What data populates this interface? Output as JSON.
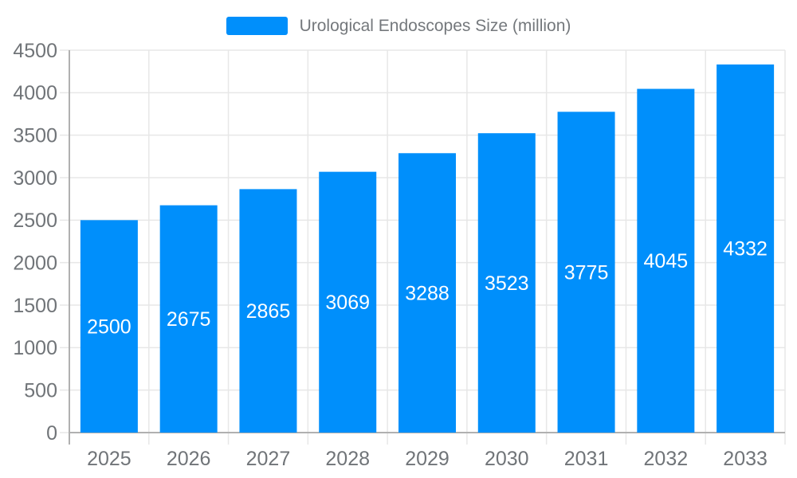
{
  "legend": {
    "label": "Urological Endoscopes Size (million)"
  },
  "colors": {
    "bar": "#008FFB",
    "grid": "#E7E7E7",
    "axis_line": "#B0B0B0",
    "tick_label": "#707478",
    "data_label": "#FFFFFF",
    "legend_text": "#74787C",
    "background": "#FFFFFF"
  },
  "chart_data": {
    "type": "bar",
    "title": "Urological Endoscopes Size (million)",
    "categories": [
      "2025",
      "2026",
      "2027",
      "2028",
      "2029",
      "2030",
      "2031",
      "2032",
      "2033"
    ],
    "series": [
      {
        "name": "Urological Endoscopes Size (million)",
        "values": [
          2500,
          2675,
          2865,
          3069,
          3288,
          3523,
          3775,
          4045,
          4332
        ]
      }
    ],
    "xlabel": "",
    "ylabel": "",
    "ylim": [
      0,
      4500
    ],
    "ytick_step": 500,
    "grid": true,
    "legend_position": "top",
    "bar_label_position": "inside-center"
  }
}
